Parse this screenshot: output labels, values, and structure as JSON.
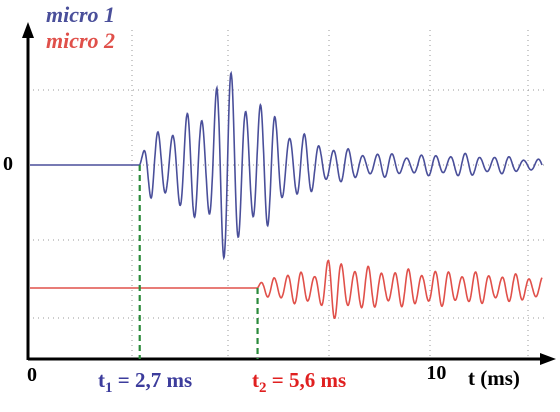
{
  "chart_data": {
    "type": "line",
    "xlabel": "t (ms)",
    "xlim": [
      0,
      12.6
    ],
    "x_ticks": [
      {
        "value": 0,
        "label": "0"
      },
      {
        "value": 10,
        "label": "10"
      }
    ],
    "y_ticks": [
      {
        "label": "0"
      }
    ],
    "grid": true,
    "legend_position": "top-left",
    "series": [
      {
        "name": "micro 1",
        "color": "#4a4f9a",
        "onset_ms": 2.7,
        "baseline": "zero",
        "envelope": [
          {
            "t": 2.7,
            "a": 0.05
          },
          {
            "t": 3.0,
            "a": 0.35
          },
          {
            "t": 3.6,
            "a": 0.45
          },
          {
            "t": 4.3,
            "a": 0.6
          },
          {
            "t": 4.6,
            "a": 1.0
          },
          {
            "t": 5.0,
            "a": 0.9
          },
          {
            "t": 5.6,
            "a": 0.7
          },
          {
            "t": 6.2,
            "a": 0.45
          },
          {
            "t": 7.0,
            "a": 0.25
          },
          {
            "t": 8.0,
            "a": 0.14
          },
          {
            "t": 9.5,
            "a": 0.1
          },
          {
            "t": 10.5,
            "a": 0.12
          },
          {
            "t": 12.6,
            "a": 0.06
          }
        ],
        "period_ms": 0.36
      },
      {
        "name": "micro 2",
        "color": "#e0504a",
        "onset_ms": 5.6,
        "baseline": "lower",
        "envelope": [
          {
            "t": 5.6,
            "a": 0.05
          },
          {
            "t": 6.0,
            "a": 0.25
          },
          {
            "t": 7.0,
            "a": 0.3
          },
          {
            "t": 7.4,
            "a": 0.55
          },
          {
            "t": 7.8,
            "a": 0.45
          },
          {
            "t": 8.5,
            "a": 0.35
          },
          {
            "t": 10.0,
            "a": 0.32
          },
          {
            "t": 11.0,
            "a": 0.28
          },
          {
            "t": 12.6,
            "a": 0.22
          }
        ],
        "period_ms": 0.33
      }
    ],
    "annotations": [
      {
        "id": "t1",
        "symbol": "t",
        "subscript": "1",
        "text": " = 2,7 ms",
        "x": 2.7,
        "color": "#3c3c9c"
      },
      {
        "id": "t2",
        "symbol": "t",
        "subscript": "2",
        "text": " = 5,6 ms",
        "x": 5.6,
        "color": "#e02020"
      }
    ]
  },
  "colors": {
    "axis": "#000000",
    "grid": "#9a9a9a",
    "marker": "#2a8a3a"
  }
}
